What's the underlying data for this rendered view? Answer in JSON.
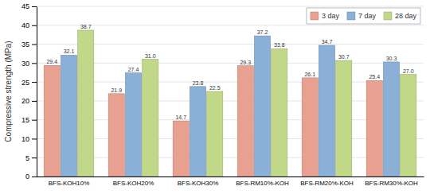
{
  "chart_data": {
    "type": "bar",
    "ylabel": "Compressive strength (MPa)",
    "categories": [
      "BFS-KOH10%",
      "BFS-KOH20%",
      "BFS-KOH30%",
      "BFS-RM10%-KOH",
      "BFS-RM20%-KOH",
      "BFS-RM30%-KOH"
    ],
    "series": [
      {
        "name": "3 day",
        "color": "#e8a090",
        "values": [
          29.4,
          21.9,
          14.7,
          29.3,
          26.1,
          25.4
        ]
      },
      {
        "name": "7 day",
        "color": "#8ab0d8",
        "values": [
          32.1,
          27.4,
          23.8,
          37.2,
          34.7,
          30.3
        ]
      },
      {
        "name": "28 day",
        "color": "#c0d888",
        "values": [
          38.7,
          31.0,
          22.5,
          33.8,
          30.7,
          27.0
        ],
        "value_labels": [
          "38.7",
          "31.0",
          "22.5",
          "33.8",
          "30.7",
          "27.0"
        ]
      }
    ],
    "ylim": [
      0,
      45
    ],
    "yticks": [
      0,
      5,
      10,
      15,
      20,
      25,
      30,
      35,
      40,
      45
    ],
    "grid": true,
    "legend": "upper right",
    "data_labels": true
  }
}
